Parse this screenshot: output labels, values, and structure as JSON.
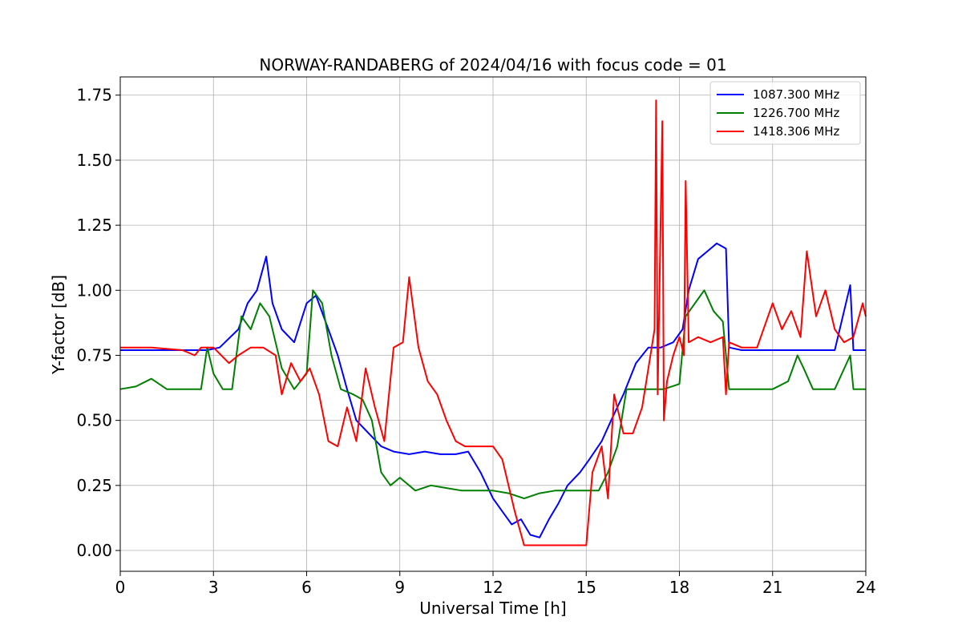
{
  "chart_data": {
    "type": "line",
    "title": "NORWAY-RANDABERG of 2024/04/16 with focus code = 01",
    "xlabel": "Universal Time [h]",
    "ylabel": "Y-factor [dB]",
    "xlim": [
      0,
      24
    ],
    "ylim": [
      -0.08,
      1.82
    ],
    "xticks": [
      0,
      3,
      6,
      9,
      12,
      15,
      18,
      21,
      24
    ],
    "xtick_labels": [
      "0",
      "3",
      "6",
      "9",
      "12",
      "15",
      "18",
      "21",
      "24"
    ],
    "yticks": [
      0.0,
      0.25,
      0.5,
      0.75,
      1.0,
      1.25,
      1.5,
      1.75
    ],
    "ytick_labels": [
      "0.00",
      "0.25",
      "0.50",
      "0.75",
      "1.00",
      "1.25",
      "1.50",
      "1.75"
    ],
    "grid": true,
    "legend_position": "upper-right",
    "series": [
      {
        "name": "1087.300 MHz",
        "color": "#0000ff",
        "x": [
          0,
          1,
          2,
          2.8,
          3.2,
          3.8,
          4.1,
          4.4,
          4.7,
          4.9,
          5.2,
          5.6,
          6.0,
          6.3,
          6.7,
          7.0,
          7.3,
          7.6,
          8.0,
          8.4,
          8.8,
          9.3,
          9.8,
          10.3,
          10.8,
          11.2,
          11.6,
          12.0,
          12.3,
          12.6,
          12.9,
          13.2,
          13.5,
          13.8,
          14.1,
          14.4,
          14.8,
          15.1,
          15.5,
          15.8,
          16.2,
          16.6,
          17.0,
          17.4,
          17.8,
          18.1,
          18.3,
          18.6,
          18.9,
          19.2,
          19.5,
          19.6,
          20.0,
          21.0,
          22.0,
          23.0,
          23.5,
          23.6,
          24.0
        ],
        "y": [
          0.77,
          0.77,
          0.77,
          0.77,
          0.78,
          0.85,
          0.95,
          1.0,
          1.13,
          0.95,
          0.85,
          0.8,
          0.95,
          0.98,
          0.85,
          0.75,
          0.62,
          0.5,
          0.45,
          0.4,
          0.38,
          0.37,
          0.38,
          0.37,
          0.37,
          0.38,
          0.3,
          0.2,
          0.15,
          0.1,
          0.12,
          0.06,
          0.05,
          0.12,
          0.18,
          0.25,
          0.3,
          0.35,
          0.42,
          0.5,
          0.6,
          0.72,
          0.78,
          0.78,
          0.8,
          0.85,
          1.0,
          1.12,
          1.15,
          1.18,
          1.16,
          0.78,
          0.77,
          0.77,
          0.77,
          0.77,
          1.02,
          0.77,
          0.77
        ]
      },
      {
        "name": "1226.700 MHz",
        "color": "#008000",
        "x": [
          0,
          0.5,
          1.0,
          1.5,
          2.0,
          2.6,
          2.8,
          3.0,
          3.3,
          3.6,
          3.9,
          4.2,
          4.5,
          4.8,
          5.2,
          5.6,
          6.0,
          6.2,
          6.5,
          6.8,
          7.1,
          7.5,
          7.8,
          8.1,
          8.4,
          8.7,
          9.0,
          9.5,
          10.0,
          10.5,
          11.0,
          11.5,
          12.0,
          12.5,
          13.0,
          13.5,
          14.0,
          14.5,
          15.0,
          15.4,
          15.7,
          16.0,
          16.3,
          16.6,
          17.0,
          17.5,
          18.0,
          18.2,
          18.5,
          18.8,
          19.1,
          19.4,
          19.6,
          20.0,
          21.0,
          21.5,
          21.8,
          22.0,
          22.3,
          23.0,
          23.5,
          23.6,
          24.0
        ],
        "y": [
          0.62,
          0.63,
          0.66,
          0.62,
          0.62,
          0.62,
          0.78,
          0.68,
          0.62,
          0.62,
          0.9,
          0.85,
          0.95,
          0.9,
          0.7,
          0.62,
          0.68,
          1.0,
          0.95,
          0.75,
          0.62,
          0.6,
          0.58,
          0.5,
          0.3,
          0.25,
          0.28,
          0.23,
          0.25,
          0.24,
          0.23,
          0.23,
          0.23,
          0.22,
          0.2,
          0.22,
          0.23,
          0.23,
          0.23,
          0.23,
          0.3,
          0.4,
          0.62,
          0.62,
          0.62,
          0.62,
          0.64,
          0.9,
          0.95,
          1.0,
          0.92,
          0.88,
          0.62,
          0.62,
          0.62,
          0.65,
          0.75,
          0.7,
          0.62,
          0.62,
          0.75,
          0.62,
          0.62
        ]
      },
      {
        "name": "1418.306 MHz",
        "color": "#ff0000",
        "x": [
          0,
          1,
          2.0,
          2.4,
          2.6,
          3.0,
          3.5,
          3.8,
          4.2,
          4.6,
          5.0,
          5.2,
          5.5,
          5.8,
          6.1,
          6.4,
          6.7,
          7.0,
          7.3,
          7.6,
          7.9,
          8.2,
          8.5,
          8.8,
          9.1,
          9.3,
          9.6,
          9.9,
          10.2,
          10.5,
          10.8,
          11.1,
          11.5,
          12.0,
          12.3,
          12.7,
          13.0,
          13.4,
          13.8,
          14.2,
          14.6,
          15.0,
          15.2,
          15.5,
          15.7,
          15.9,
          16.2,
          16.5,
          16.8,
          17.0,
          17.2,
          17.25,
          17.3,
          17.45,
          17.5,
          17.6,
          17.8,
          18.0,
          18.15,
          18.2,
          18.3,
          18.6,
          19.0,
          19.4,
          19.5,
          19.6,
          20.0,
          20.5,
          21.0,
          21.3,
          21.6,
          21.9,
          22.1,
          22.4,
          22.7,
          23.0,
          23.3,
          23.6,
          23.9,
          24.0
        ],
        "y": [
          0.78,
          0.78,
          0.77,
          0.75,
          0.78,
          0.78,
          0.72,
          0.75,
          0.78,
          0.78,
          0.75,
          0.6,
          0.72,
          0.65,
          0.7,
          0.6,
          0.42,
          0.4,
          0.55,
          0.42,
          0.7,
          0.55,
          0.42,
          0.78,
          0.8,
          1.05,
          0.78,
          0.65,
          0.6,
          0.5,
          0.42,
          0.4,
          0.4,
          0.4,
          0.35,
          0.15,
          0.02,
          0.02,
          0.02,
          0.02,
          0.02,
          0.02,
          0.3,
          0.4,
          0.2,
          0.6,
          0.45,
          0.45,
          0.55,
          0.7,
          0.85,
          1.73,
          0.6,
          1.65,
          0.5,
          0.65,
          0.75,
          0.82,
          0.75,
          1.42,
          0.8,
          0.82,
          0.8,
          0.82,
          0.6,
          0.8,
          0.78,
          0.78,
          0.95,
          0.85,
          0.92,
          0.82,
          1.15,
          0.9,
          1.0,
          0.85,
          0.8,
          0.82,
          0.95,
          0.9
        ]
      }
    ]
  }
}
